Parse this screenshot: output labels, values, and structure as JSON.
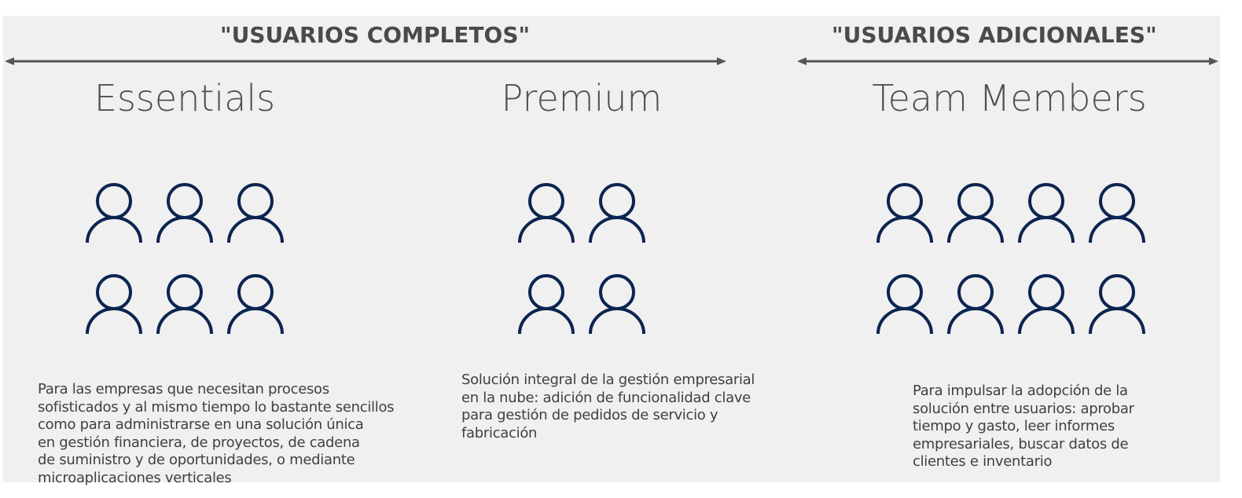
{
  "headers": {
    "full_users": "\"USUARIOS COMPLETOS\"",
    "additional_users": "\"USUARIOS ADICIONALES\""
  },
  "tiers": [
    {
      "name": "Essentials",
      "user_count": 6,
      "description": "Para las empresas que necesitan procesos\nsofisticados y al mismo tiempo lo bastante sencillos\ncomo para administrarse en una solución única\nen gestión financiera, de proyectos, de cadena\nde suministro y de oportunidades, o mediante\nmicroaplicaciones verticales"
    },
    {
      "name": "Premium",
      "user_count": 4,
      "description": "Solución integral de la gestión empresarial\nen la nube: adición de funcionalidad clave\npara gestión de pedidos de servicio y\nfabricación"
    },
    {
      "name": "Team Members",
      "user_count": 8,
      "description": "Para impulsar la adopción de la\nsolución entre usuarios: aprobar\ntiempo y gasto, leer informes\nempresariales, buscar datos de\nclientes e inventario"
    }
  ],
  "colors": {
    "icon": "#0c2450",
    "panel": "#f0f0f0",
    "arrow": "#555555"
  },
  "icons": {
    "user": "user-icon"
  }
}
